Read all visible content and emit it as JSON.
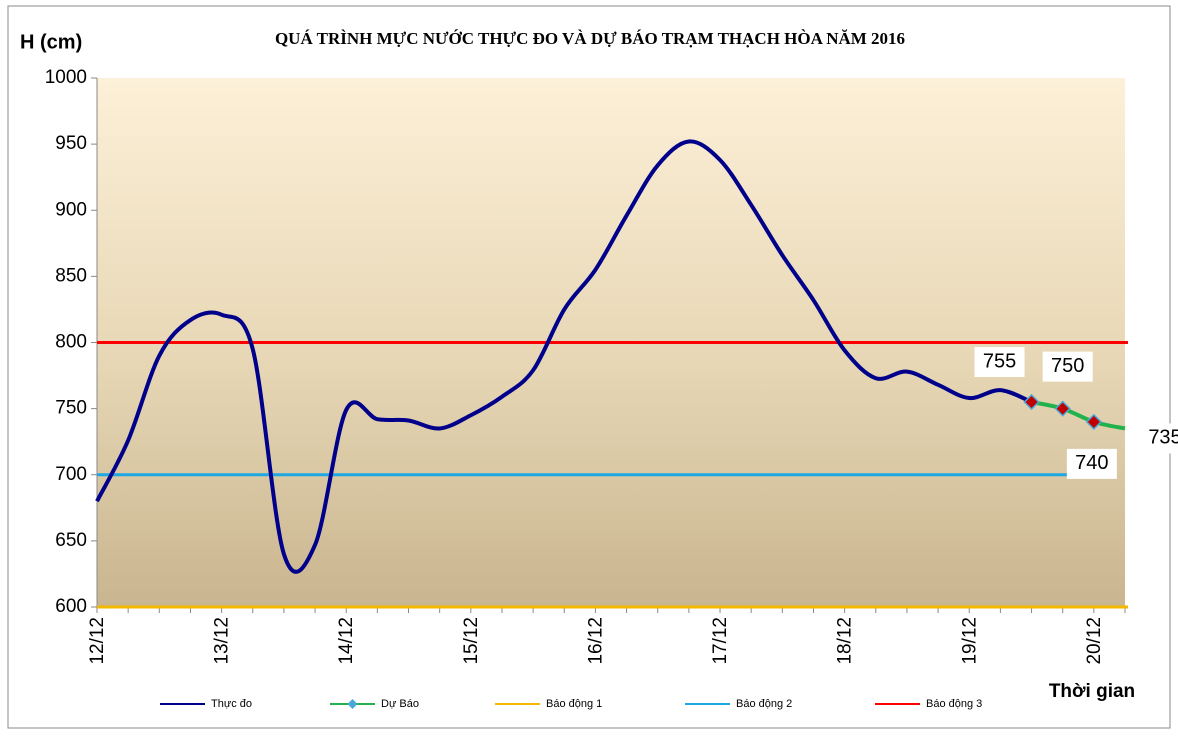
{
  "chart_data": {
    "type": "line",
    "title": "QUÁ TRÌNH MỰC NƯỚC THỰC ĐO VÀ DỰ BÁO TRẠM THẠCH HÒA NĂM 2016",
    "y_label": "H (cm)",
    "x_label": "Thời gian",
    "categories": [
      "12/12",
      null,
      null,
      null,
      "13/12",
      null,
      null,
      null,
      "14/12",
      null,
      null,
      null,
      "15/12",
      null,
      null,
      null,
      "16/12",
      null,
      null,
      null,
      "17/12",
      null,
      null,
      null,
      "18/12",
      null,
      null,
      null,
      "19/12",
      null,
      null,
      null,
      "20/12",
      null
    ],
    "series": [
      {
        "name": "Thực đo",
        "color": "#00008b",
        "values": [
          680,
          726,
          790,
          817,
          821,
          795,
          640,
          647,
          749,
          742,
          741,
          735,
          745,
          759,
          779,
          825,
          855,
          896,
          934,
          952,
          938,
          904,
          866,
          832,
          794,
          773,
          778,
          768,
          758,
          764,
          755,
          null,
          null,
          null
        ]
      },
      {
        "name": "Dự Báo",
        "color": "#22b24c",
        "marker_color": "#c00000",
        "values": [
          null,
          null,
          null,
          null,
          null,
          null,
          null,
          null,
          null,
          null,
          null,
          null,
          null,
          null,
          null,
          null,
          null,
          null,
          null,
          null,
          null,
          null,
          null,
          null,
          null,
          null,
          null,
          null,
          null,
          null,
          755,
          750,
          740,
          735
        ]
      }
    ],
    "alarms": [
      {
        "name": "Báo động 1",
        "color": "#f5b800",
        "level": 600
      },
      {
        "name": "Báo động 2",
        "color": "#1ea7e1",
        "level": 700
      },
      {
        "name": "Báo động 3",
        "color": "#ff0000",
        "level": 800
      }
    ],
    "ylim": [
      600,
      1000
    ],
    "yticks": [
      600,
      650,
      700,
      750,
      800,
      850,
      900,
      950,
      1000
    ]
  }
}
